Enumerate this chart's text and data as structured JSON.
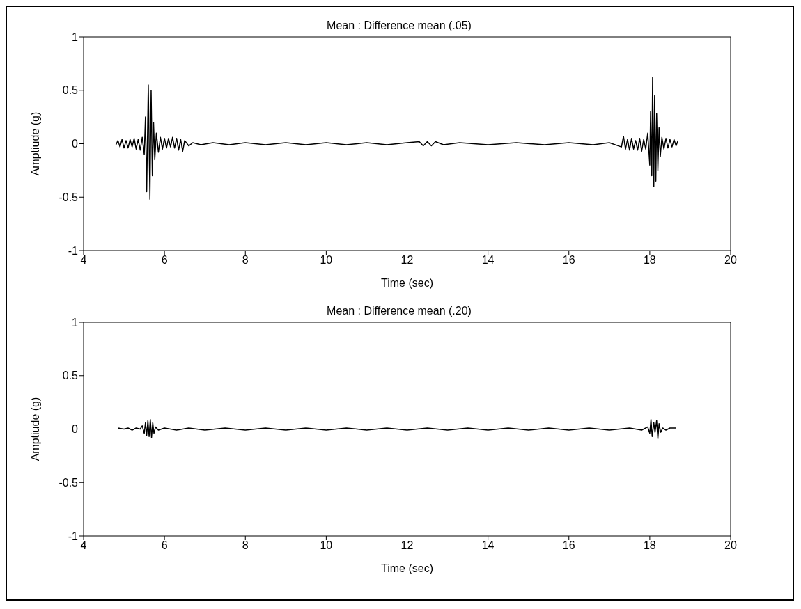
{
  "chart_data": [
    {
      "type": "line",
      "title": "Mean : Difference mean (.05)",
      "xlabel": "Time (sec)",
      "ylabel": "Amptiude (g)",
      "xlim": [
        4,
        20
      ],
      "xticks": [
        4,
        6,
        8,
        10,
        12,
        14,
        16,
        18,
        20
      ],
      "ylim": [
        -1,
        1
      ],
      "yticks": [
        -1,
        -0.5,
        0,
        0.5,
        1
      ],
      "marker": "none",
      "line_style": "solid",
      "series": [
        {
          "color": "#000000",
          "x": [
            4.8,
            4.85,
            4.9,
            4.95,
            5.0,
            5.05,
            5.1,
            5.15,
            5.2,
            5.25,
            5.3,
            5.35,
            5.4,
            5.45,
            5.5,
            5.53,
            5.56,
            5.6,
            5.64,
            5.67,
            5.7,
            5.73,
            5.76,
            5.8,
            5.85,
            5.9,
            5.95,
            6.0,
            6.05,
            6.1,
            6.15,
            6.2,
            6.25,
            6.3,
            6.35,
            6.4,
            6.45,
            6.5,
            6.6,
            6.7,
            6.9,
            7.2,
            7.6,
            8.0,
            8.5,
            9.0,
            9.5,
            10.0,
            10.5,
            11.0,
            11.5,
            12.0,
            12.3,
            12.4,
            12.5,
            12.6,
            12.7,
            12.9,
            13.3,
            14.0,
            14.7,
            15.4,
            16.0,
            16.6,
            17.0,
            17.3,
            17.35,
            17.4,
            17.45,
            17.5,
            17.55,
            17.6,
            17.65,
            17.7,
            17.75,
            17.8,
            17.85,
            17.9,
            17.95,
            18.0,
            18.02,
            18.05,
            18.07,
            18.1,
            18.12,
            18.15,
            18.17,
            18.2,
            18.23,
            18.26,
            18.3,
            18.35,
            18.4,
            18.45,
            18.5,
            18.55,
            18.6,
            18.65,
            18.7
          ],
          "values": [
            -0.01,
            0.03,
            -0.03,
            0.04,
            -0.04,
            0.03,
            -0.04,
            0.04,
            -0.03,
            0.05,
            -0.05,
            0.04,
            -0.06,
            0.06,
            -0.1,
            0.25,
            -0.45,
            0.55,
            -0.52,
            0.5,
            -0.3,
            0.2,
            -0.15,
            0.1,
            -0.08,
            0.06,
            -0.05,
            0.05,
            -0.04,
            0.05,
            -0.03,
            0.06,
            -0.04,
            0.05,
            -0.06,
            0.04,
            -0.07,
            0.03,
            -0.02,
            0.01,
            -0.01,
            0.01,
            -0.01,
            0.01,
            -0.01,
            0.01,
            -0.01,
            0.01,
            -0.01,
            0.01,
            -0.01,
            0.01,
            0.02,
            -0.02,
            0.02,
            -0.02,
            0.02,
            -0.01,
            0.01,
            -0.01,
            0.01,
            -0.01,
            0.01,
            -0.01,
            0.01,
            -0.03,
            0.07,
            -0.05,
            0.04,
            -0.06,
            0.05,
            -0.05,
            0.03,
            -0.06,
            0.05,
            -0.07,
            0.04,
            -0.05,
            0.1,
            -0.2,
            0.3,
            -0.3,
            0.62,
            -0.4,
            0.45,
            -0.35,
            0.28,
            -0.25,
            0.15,
            -0.12,
            0.06,
            -0.05,
            0.05,
            -0.04,
            0.04,
            -0.03,
            0.04,
            -0.02,
            0.03
          ]
        }
      ]
    },
    {
      "type": "line",
      "title": "Mean : Difference mean (.20)",
      "xlabel": "Time (sec)",
      "ylabel": "Amptiude (g)",
      "xlim": [
        4,
        20
      ],
      "xticks": [
        4,
        6,
        8,
        10,
        12,
        14,
        16,
        18,
        20
      ],
      "ylim": [
        -1,
        1
      ],
      "yticks": [
        -1,
        -0.5,
        0,
        0.5,
        1
      ],
      "marker": "none",
      "line_style": "solid",
      "series": [
        {
          "color": "#000000",
          "x": [
            4.85,
            5.0,
            5.1,
            5.2,
            5.3,
            5.4,
            5.45,
            5.5,
            5.53,
            5.56,
            5.59,
            5.62,
            5.65,
            5.68,
            5.71,
            5.74,
            5.78,
            5.85,
            6.0,
            6.3,
            6.6,
            7.0,
            7.5,
            8.0,
            8.5,
            9.0,
            9.5,
            10.0,
            10.5,
            11.0,
            11.5,
            12.0,
            12.5,
            13.0,
            13.5,
            14.0,
            14.5,
            15.0,
            15.5,
            16.0,
            16.5,
            17.0,
            17.5,
            17.8,
            17.95,
            18.0,
            18.03,
            18.06,
            18.1,
            18.13,
            18.17,
            18.2,
            18.23,
            18.27,
            18.32,
            18.4,
            18.5,
            18.65
          ],
          "values": [
            0.01,
            0.0,
            0.01,
            -0.01,
            0.01,
            0.0,
            0.03,
            -0.04,
            0.06,
            -0.06,
            0.08,
            -0.07,
            0.09,
            -0.08,
            0.06,
            -0.04,
            0.02,
            -0.01,
            0.01,
            -0.01,
            0.01,
            -0.01,
            0.01,
            -0.01,
            0.01,
            -0.01,
            0.01,
            -0.01,
            0.01,
            -0.01,
            0.01,
            -0.01,
            0.01,
            -0.01,
            0.01,
            -0.01,
            0.01,
            -0.01,
            0.01,
            -0.01,
            0.01,
            -0.01,
            0.01,
            -0.01,
            0.02,
            -0.04,
            0.09,
            -0.07,
            0.06,
            -0.03,
            0.08,
            -0.09,
            0.05,
            -0.03,
            0.01,
            -0.01,
            0.01,
            0.01
          ]
        }
      ]
    }
  ]
}
